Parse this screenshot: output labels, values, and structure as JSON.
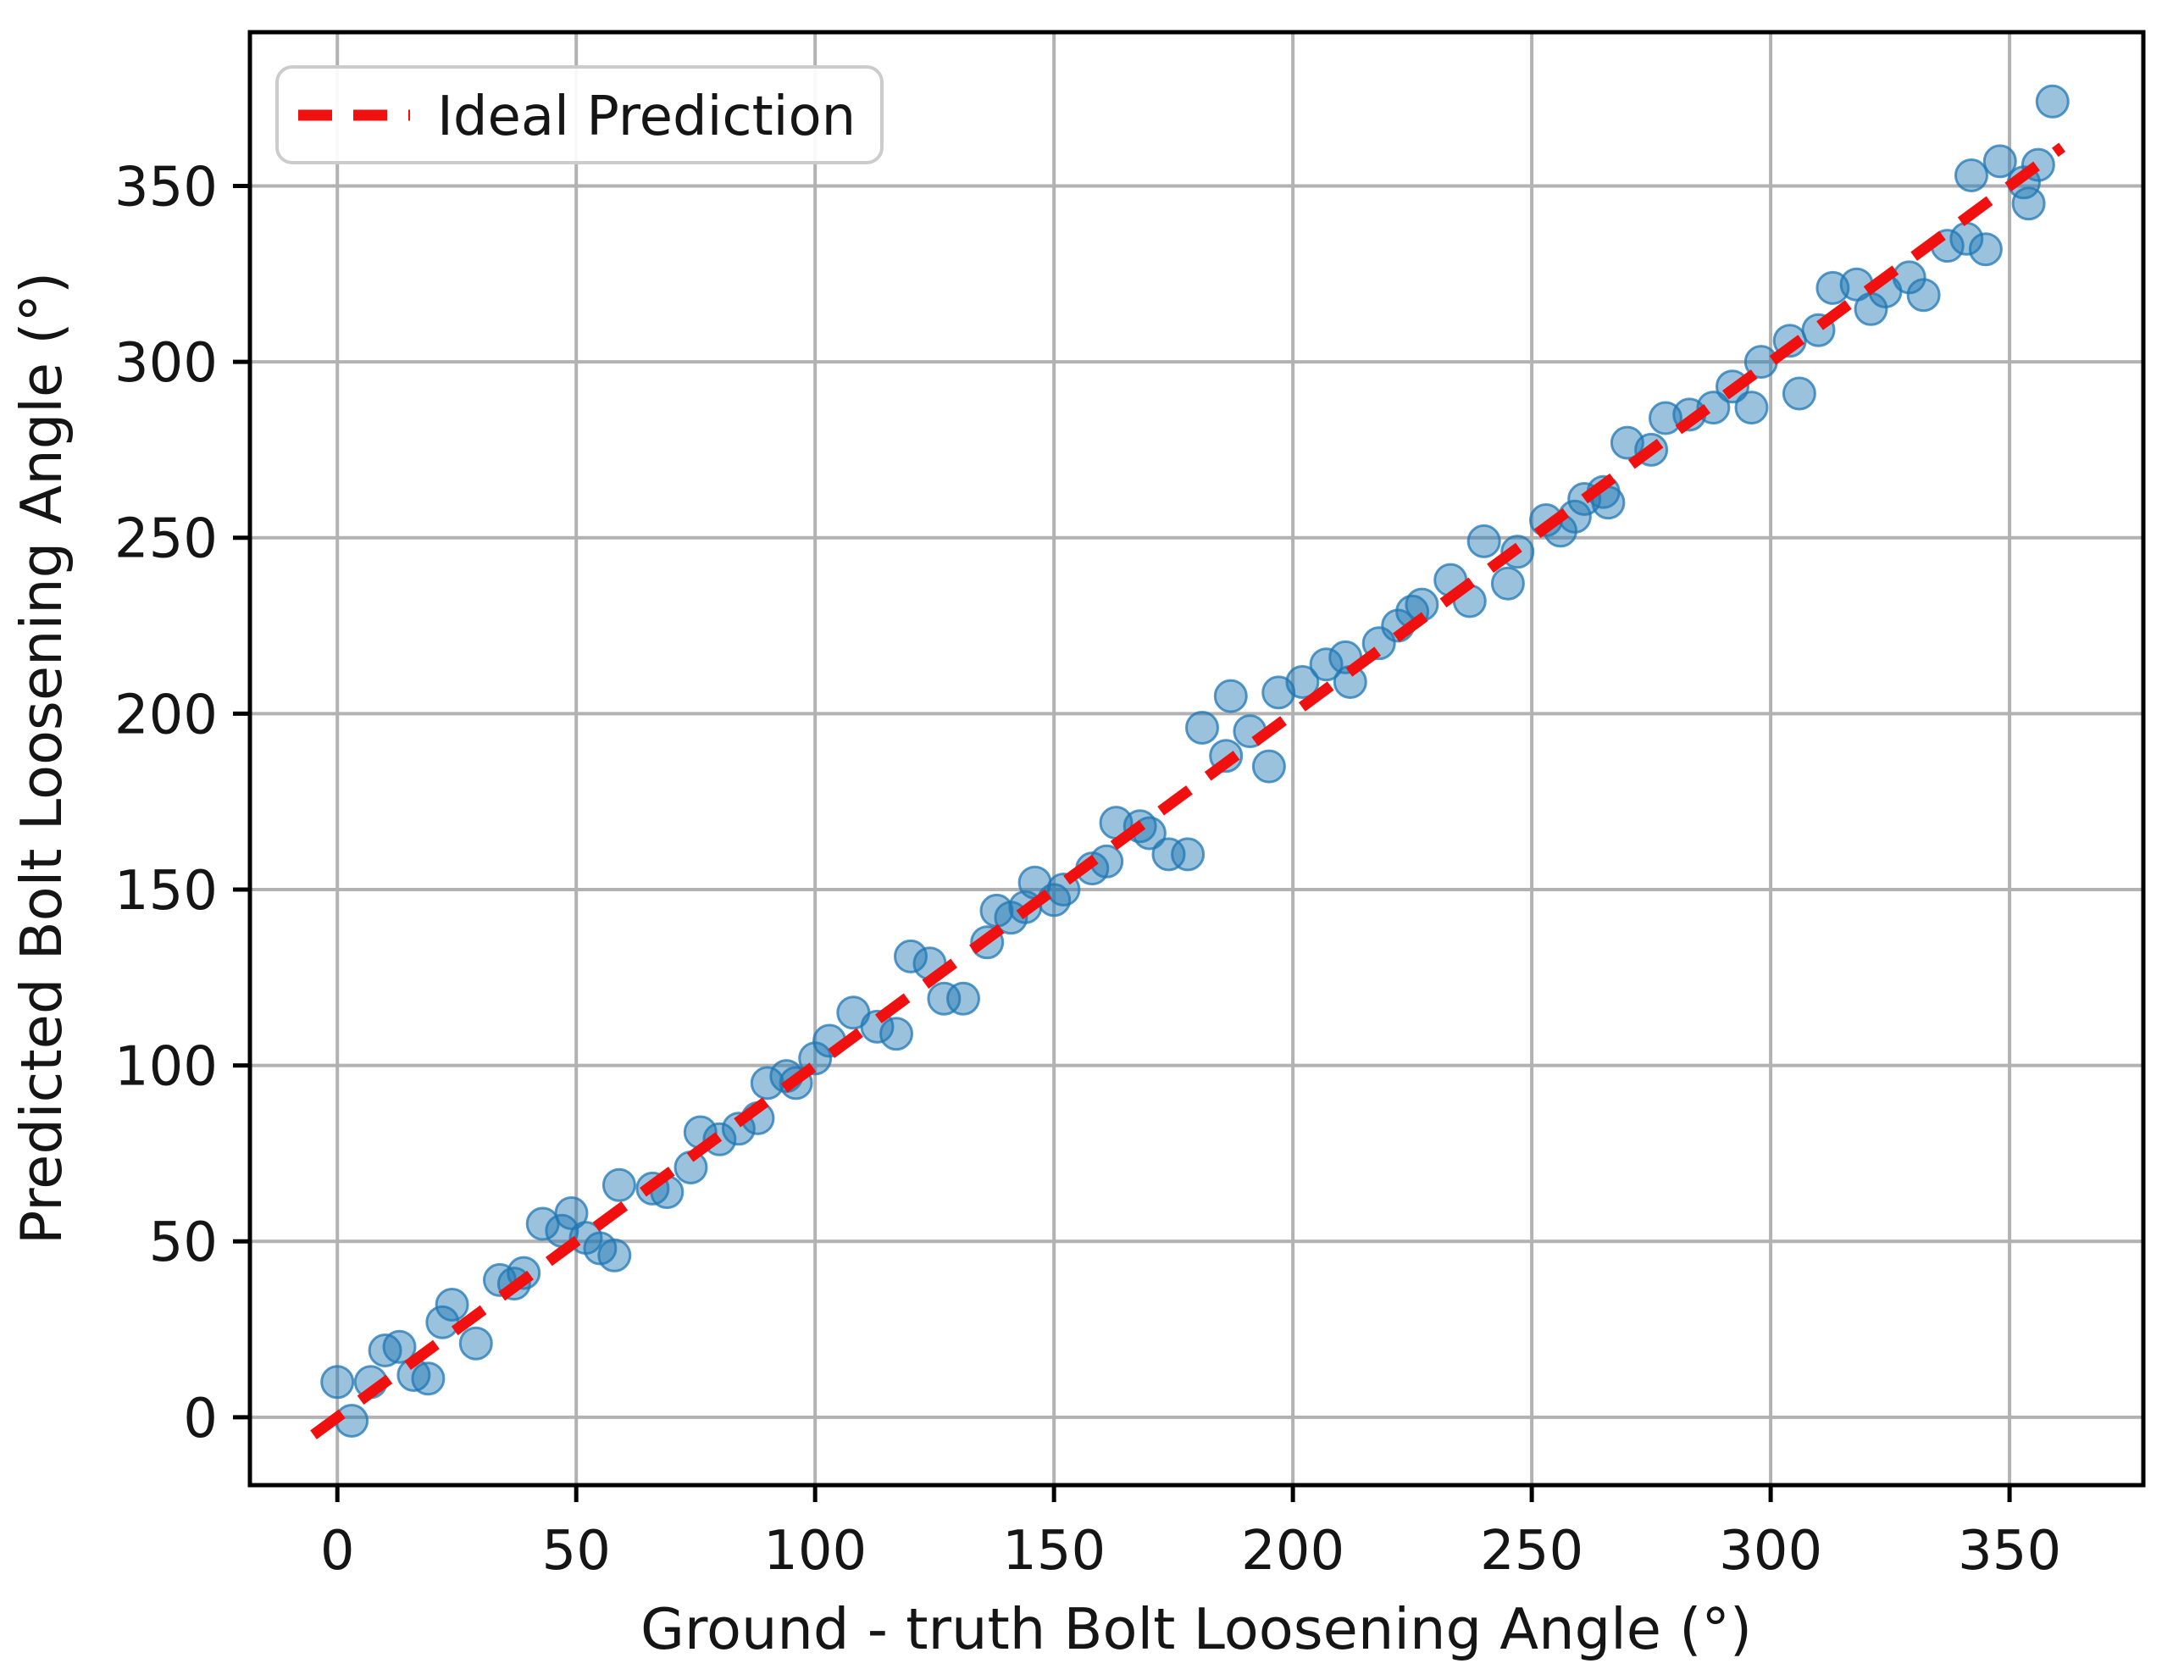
{
  "chart_data": {
    "type": "scatter",
    "xlabel": "Ground - truth Bolt Loosening Angle (°)",
    "ylabel": "Predicted Bolt Loosening Angle (°)",
    "xlim": [
      -18.3,
      378
    ],
    "ylim": [
      -19.3,
      393.7
    ],
    "xticks": [
      0,
      50,
      100,
      150,
      200,
      250,
      300,
      350
    ],
    "yticks": [
      0,
      50,
      100,
      150,
      200,
      250,
      300,
      350
    ],
    "grid": true,
    "legend_position": "upper left",
    "legend": [
      {
        "label": "Ideal Prediction",
        "style": "dashed-line",
        "color": "#f01010"
      }
    ],
    "ideal_line": {
      "x": [
        -5,
        361
      ],
      "y": [
        -5,
        361
      ]
    },
    "series": [
      {
        "name": "predictions",
        "marker": "circle",
        "color": "#1f77b4",
        "points": [
          [
            0,
            10
          ],
          [
            3,
            -1
          ],
          [
            7,
            10
          ],
          [
            10,
            19
          ],
          [
            13,
            20
          ],
          [
            16,
            12
          ],
          [
            19,
            11
          ],
          [
            22,
            27
          ],
          [
            24,
            32
          ],
          [
            29,
            21
          ],
          [
            34,
            39
          ],
          [
            37,
            38
          ],
          [
            39,
            41
          ],
          [
            43,
            55
          ],
          [
            47,
            53
          ],
          [
            49,
            58
          ],
          [
            52,
            51
          ],
          [
            55,
            48
          ],
          [
            58,
            46
          ],
          [
            59,
            66
          ],
          [
            66,
            65
          ],
          [
            69,
            64
          ],
          [
            74,
            71
          ],
          [
            76,
            81
          ],
          [
            80,
            79
          ],
          [
            84,
            82
          ],
          [
            88,
            85
          ],
          [
            90,
            95
          ],
          [
            94,
            97
          ],
          [
            96,
            95
          ],
          [
            100,
            102
          ],
          [
            103,
            107
          ],
          [
            108,
            115
          ],
          [
            113,
            111
          ],
          [
            117,
            109
          ],
          [
            120,
            131
          ],
          [
            124,
            129
          ],
          [
            127,
            119
          ],
          [
            131,
            119
          ],
          [
            136,
            135
          ],
          [
            138,
            144
          ],
          [
            141,
            142
          ],
          [
            144,
            145
          ],
          [
            146,
            152
          ],
          [
            150,
            147
          ],
          [
            152,
            150
          ],
          [
            158,
            156
          ],
          [
            161,
            158
          ],
          [
            163,
            169
          ],
          [
            168,
            168
          ],
          [
            170,
            166
          ],
          [
            174,
            160
          ],
          [
            178,
            160
          ],
          [
            181,
            196
          ],
          [
            186,
            188
          ],
          [
            187,
            205
          ],
          [
            191,
            195
          ],
          [
            195,
            185
          ],
          [
            197,
            206
          ],
          [
            202,
            209
          ],
          [
            207,
            214
          ],
          [
            211,
            216
          ],
          [
            212,
            209
          ],
          [
            218,
            220
          ],
          [
            222,
            225
          ],
          [
            225,
            229
          ],
          [
            227,
            231
          ],
          [
            233,
            238
          ],
          [
            237,
            232
          ],
          [
            240,
            249
          ],
          [
            245,
            237
          ],
          [
            247,
            246
          ],
          [
            253,
            255
          ],
          [
            256,
            252
          ],
          [
            259,
            256
          ],
          [
            261,
            261
          ],
          [
            265,
            263
          ],
          [
            266,
            260
          ],
          [
            270,
            277
          ],
          [
            275,
            275
          ],
          [
            278,
            284
          ],
          [
            283,
            285
          ],
          [
            288,
            287
          ],
          [
            292,
            293
          ],
          [
            296,
            287
          ],
          [
            298,
            300
          ],
          [
            304,
            306
          ],
          [
            306,
            291
          ],
          [
            310,
            309
          ],
          [
            313,
            321
          ],
          [
            318,
            322
          ],
          [
            321,
            315
          ],
          [
            324,
            320
          ],
          [
            329,
            324
          ],
          [
            332,
            319
          ],
          [
            337,
            333
          ],
          [
            341,
            335
          ],
          [
            345,
            332
          ],
          [
            342,
            353
          ],
          [
            348,
            357
          ],
          [
            353,
            351
          ],
          [
            354,
            345
          ],
          [
            356,
            356
          ],
          [
            359,
            374
          ]
        ]
      }
    ],
    "colors": {
      "point_fill": "#1f77b4",
      "point_fill_opacity": 0.45,
      "point_edge": "#1f77b4",
      "point_edge_opacity": 0.75,
      "ideal_line": "#f01010",
      "grid": "#b2b2b2",
      "spine": "#000000",
      "text": "#151515"
    }
  }
}
